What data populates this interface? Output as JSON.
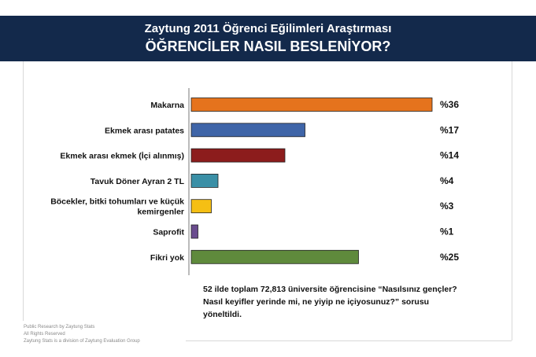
{
  "header": {
    "title": "Zaytung 2011 Öğrenci Eğilimleri Araştırması",
    "subtitle": "ÖĞRENCİLER NASIL BESLENİYOR?"
  },
  "chart_data": {
    "type": "bar",
    "orientation": "horizontal",
    "title": "",
    "xlabel": "",
    "ylabel": "",
    "xlim": [
      0,
      36
    ],
    "grid": false,
    "legend": "none",
    "categories": [
      [
        "Makarna"
      ],
      [
        "Ekmek arası patates"
      ],
      [
        "Ekmek arası ekmek (İçi alınmış)"
      ],
      [
        "Tavuk Döner Ayran 2 TL"
      ],
      [
        "Böcekler, bitki tohumları ve küçük",
        "kemirgenler"
      ],
      [
        "Saprofit"
      ],
      [
        "Fikri yok"
      ]
    ],
    "values": [
      36,
      17,
      14,
      4,
      3,
      1,
      25
    ],
    "value_labels": [
      "%36",
      "%17",
      "%14",
      "%4",
      "%3",
      "%1",
      "%25"
    ],
    "colors": [
      "#e5731d",
      "#3f65a8",
      "#8c1c1c",
      "#3a8fa6",
      "#f5bf14",
      "#6a4c8e",
      "#5f8a3c"
    ]
  },
  "note": "52 ilde toplam 72,813 üniversite öğrencisine “Nasılsınız gençler? Nasıl keyifler yerinde mi, ne yiyip ne içiyosunuz?” sorusu yöneltildi.",
  "footer": [
    "Public Research by Zaytung Stats",
    "All Rights Reserved",
    "Zaytung Stats is a division of Zaytung Evaluation Group"
  ]
}
